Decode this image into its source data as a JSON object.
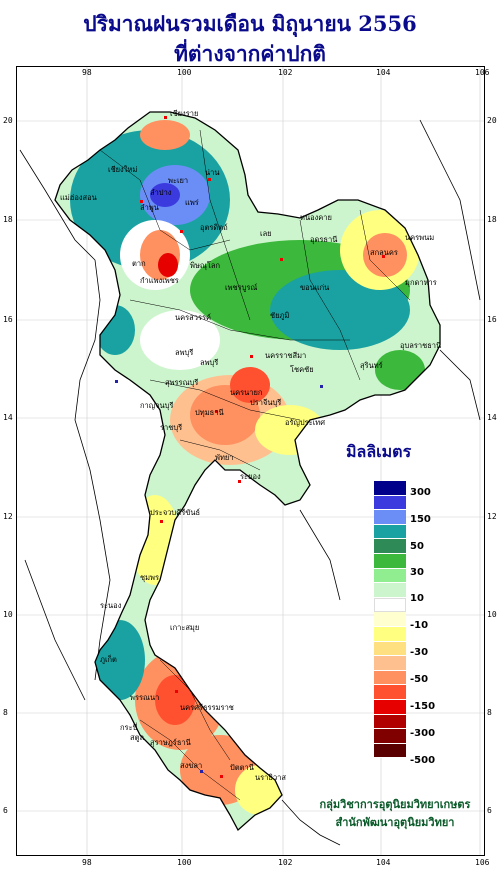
{
  "title_line1": "ปริมาณฝนรวมเดือน  มิถุนายน 2556",
  "title_line2": "ที่ต่างจากค่าปกติ",
  "x_ticks": [
    "98",
    "100",
    "102",
    "104",
    "106"
  ],
  "y_ticks": [
    "20",
    "18",
    "16",
    "14",
    "12",
    "10",
    "8",
    "6"
  ],
  "legend": {
    "title": "มิลลิเมตร",
    "labels": [
      "300",
      "150",
      "50",
      "30",
      "10",
      "-10",
      "-30",
      "-50",
      "-150",
      "-300",
      "-500"
    ],
    "colors": [
      "#00008b",
      "#3a3adf",
      "#6a8ef5",
      "#1aa2a2",
      "#2e8b57",
      "#3cb83c",
      "#90ee90",
      "#cdf5cd",
      "#ffffff",
      "#ffffd0",
      "#ffff80",
      "#ffe080",
      "#ffc090",
      "#ff9060",
      "#ff5030",
      "#e60000",
      "#b00000",
      "#800000",
      "#5a0000"
    ]
  },
  "credit_line1": "กลุ่มวิชาการอุตุนิยมวิทยาเกษตร",
  "credit_line2": "สำนักพัฒนาอุตุนิยมวิทยา",
  "provinces": [
    "เชียงราย",
    "เชียงใหม่",
    "พะเยา",
    "แม่ฮ่องสอน",
    "ลำพูน",
    "น่าน",
    "ลำปาง",
    "แพร่",
    "อุตรดิตถ์",
    "ตาก",
    "หนองคาย",
    "นครพนม",
    "สกลนคร",
    "เลย",
    "อุดรธานี",
    "พิษณุโลก",
    "กำแพงเพชร",
    "เพชรบูรณ์",
    "ขอนแก่น",
    "มุกดาหาร",
    "นครสวรรค์",
    "ชัยภูมิ",
    "อุบลราชธานี",
    "ลพบุรี",
    "นครราชสีมา",
    "สุรินทร์",
    "สุพรรณบุรี",
    "โชคชัย",
    "กาญจนบุรี",
    "ปทุมธานี",
    "ราชบุรี",
    "ปราจีนบุรี",
    "อรัญประเทศ",
    "ระยอง",
    "พัทยา",
    "ประจวบคีรีขันธ์",
    "ชุมพร",
    "ระนอง",
    "เกาะสมุย",
    "พรรณนา",
    "ภูเก็ต",
    "นครศรีธรรมราช",
    "กระบี่",
    "สงขลา",
    "ปัตตานี",
    "นราธิวาส",
    "สตูล",
    "สุราษฎร์ธานี",
    "ลพบุรี",
    "นครนายก"
  ]
}
